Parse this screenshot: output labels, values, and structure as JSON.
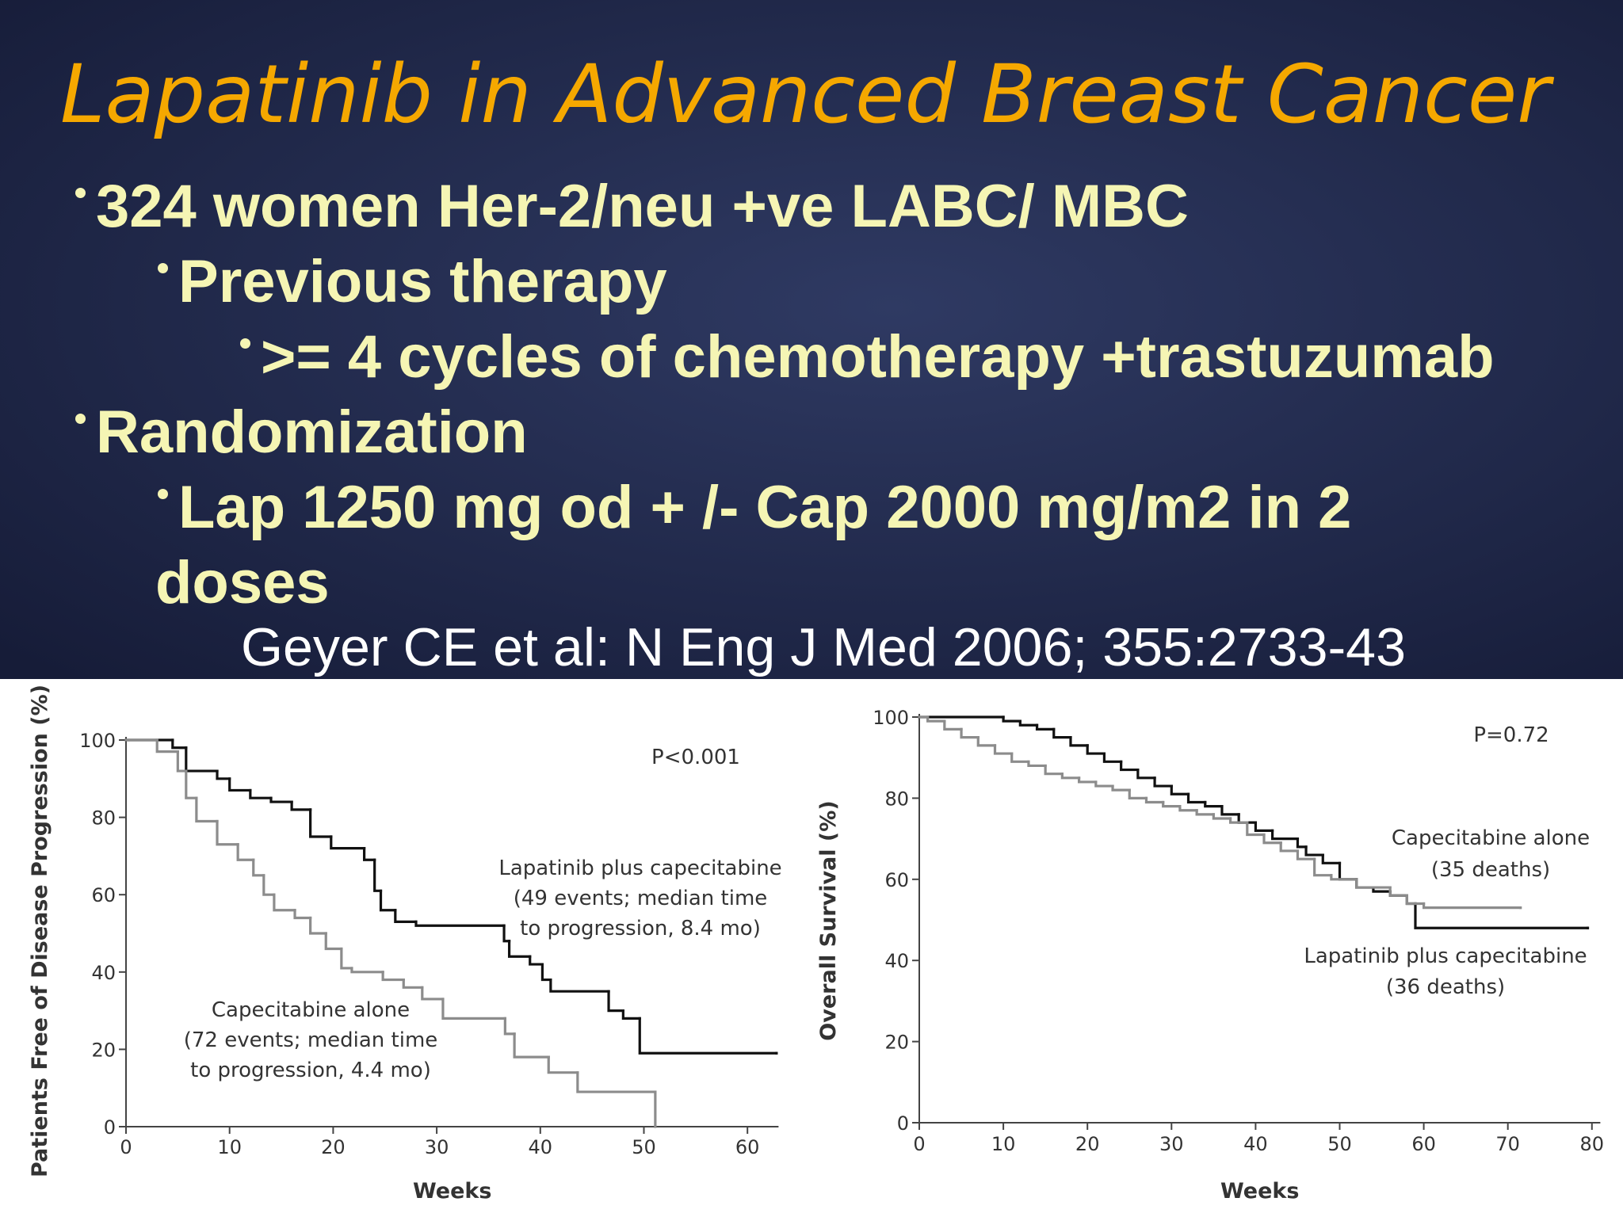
{
  "slide": {
    "title": "Lapatinib in Advanced Breast Cancer",
    "bullets": [
      {
        "level": 1,
        "text": "324 women Her-2/neu +ve LABC/ MBC"
      },
      {
        "level": 2,
        "text": "Previous therapy"
      },
      {
        "level": 3,
        "text": ">= 4 cycles of chemotherapy +trastuzumab"
      },
      {
        "level": 1,
        "text": "Randomization"
      },
      {
        "level": 2,
        "text": "Lap 1250 mg od + /- Cap 2000 mg/m2 in 2 doses"
      }
    ],
    "citation": "Geyer CE et al: N Eng J Med 2006; 355:2733-43"
  },
  "chart_data": [
    {
      "type": "line",
      "drawstyle": "steps-post",
      "annotation": "P<0.001",
      "x_label": "Weeks",
      "y_label": "Patients Free of Disease Progression (%)",
      "xlim": [
        0,
        63
      ],
      "xticks": [
        0,
        10,
        20,
        30,
        40,
        50,
        60
      ],
      "ylim": [
        0,
        100
      ],
      "yticks": [
        0,
        20,
        40,
        60,
        80,
        100
      ],
      "series": [
        {
          "name": "Lapatinib plus capecitabine",
          "detail": [
            "(49 events; median time",
            "to progression, 8.4 mo)"
          ],
          "color": "#111111",
          "x": [
            0,
            4.5,
            5.8,
            8.8,
            10,
            12,
            14,
            16,
            17.8,
            19.8,
            23,
            24,
            24.6,
            26,
            28,
            36.5,
            37,
            39,
            40.2,
            41,
            46.6,
            48,
            49.6,
            62.8
          ],
          "values": [
            100,
            98,
            92,
            90,
            87,
            85,
            84,
            82,
            75,
            72,
            69,
            61,
            56,
            53,
            52,
            48,
            44,
            42,
            38,
            35,
            30,
            28,
            19,
            19
          ]
        },
        {
          "name": "Capecitabine alone",
          "detail": [
            "(72 events; median time",
            "to progression, 4.4 mo)"
          ],
          "color": "#8c8c8c",
          "x": [
            0,
            3,
            5,
            5.8,
            6.8,
            8.8,
            10.8,
            12.3,
            13.3,
            14.3,
            16.3,
            17.8,
            19.3,
            20.8,
            21.8,
            24.8,
            26.8,
            28.6,
            30.6,
            36.6,
            37.5,
            40.8,
            43.6,
            51.1
          ],
          "values": [
            100,
            97,
            92,
            85,
            79,
            73,
            69,
            65,
            60,
            56,
            54,
            50,
            46,
            41,
            40,
            38,
            36,
            33,
            28,
            24,
            18,
            14,
            9,
            0
          ]
        }
      ]
    },
    {
      "type": "line",
      "drawstyle": "steps-post",
      "annotation": "P=0.72",
      "x_label": "Weeks",
      "y_label": "Overall Survival (%)",
      "xlim": [
        0,
        81
      ],
      "xticks": [
        0,
        10,
        20,
        30,
        40,
        50,
        60,
        70,
        80
      ],
      "ylim": [
        0,
        100
      ],
      "yticks": [
        0,
        20,
        40,
        60,
        80,
        100
      ],
      "series": [
        {
          "name": "Lapatinib plus capecitabine",
          "detail": [
            "(36 deaths)"
          ],
          "color": "#111111",
          "x": [
            0,
            10,
            12,
            14,
            16,
            18,
            20,
            22,
            24,
            26,
            28,
            30,
            32,
            34,
            36,
            38,
            40,
            42,
            45,
            46,
            48,
            50,
            52,
            54,
            56,
            58,
            59,
            79.5
          ],
          "values": [
            100,
            99,
            98,
            97,
            95,
            93,
            91,
            89,
            87,
            85,
            83,
            81,
            79,
            78,
            76,
            74,
            72,
            70,
            68,
            66,
            64,
            60,
            58,
            57,
            56,
            54,
            48,
            48
          ]
        },
        {
          "name": "Capecitabine alone",
          "detail": [
            "(35 deaths)"
          ],
          "color": "#8c8c8c",
          "x": [
            0,
            1,
            3,
            5,
            7,
            9,
            11,
            13,
            15,
            17,
            19,
            21,
            23,
            25,
            27,
            29,
            31,
            33,
            35,
            37,
            39,
            41,
            43,
            45,
            47,
            49,
            52,
            56,
            58,
            60,
            71.5
          ],
          "values": [
            100,
            99,
            97,
            95,
            93,
            91,
            89,
            88,
            86,
            85,
            84,
            83,
            82,
            80,
            79,
            78,
            77,
            76,
            75,
            74,
            71,
            69,
            67,
            65,
            61,
            60,
            58,
            56,
            54,
            53,
            53
          ]
        }
      ]
    }
  ]
}
